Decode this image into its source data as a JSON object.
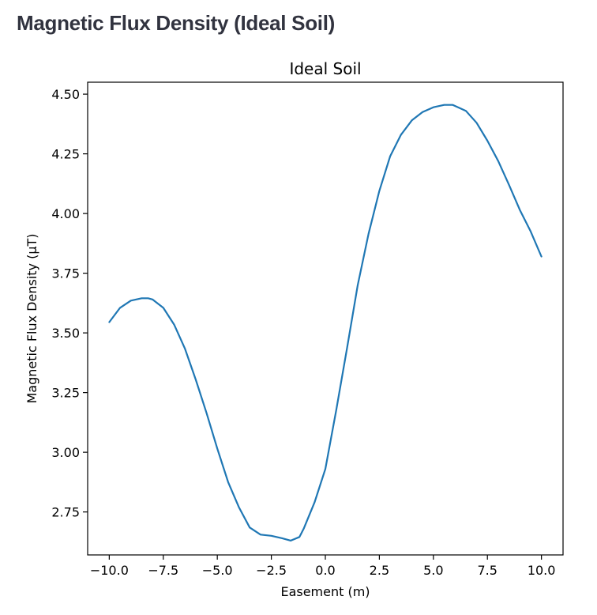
{
  "page": {
    "heading": "Magnetic Flux Density (Ideal Soil)"
  },
  "chart_data": {
    "type": "line",
    "title": "Ideal Soil",
    "xlabel": "Easement (m)",
    "ylabel": "Magnetic Flux Density (µT)",
    "xlim": [
      -11.0,
      11.0
    ],
    "ylim": [
      2.57,
      4.55
    ],
    "xticks": [
      -10.0,
      -7.5,
      -5.0,
      -2.5,
      0.0,
      2.5,
      5.0,
      7.5,
      10.0
    ],
    "xtick_labels": [
      "−10.0",
      "−7.5",
      "−5.0",
      "−2.5",
      "0.0",
      "2.5",
      "5.0",
      "7.5",
      "10.0"
    ],
    "yticks": [
      2.75,
      3.0,
      3.25,
      3.5,
      3.75,
      4.0,
      4.25,
      4.5
    ],
    "ytick_labels": [
      "2.75",
      "3.00",
      "3.25",
      "3.50",
      "3.75",
      "4.00",
      "4.25",
      "4.50"
    ],
    "grid": false,
    "legend": "none",
    "line_color": "#1f77b4",
    "series": [
      {
        "x": [
          -10.0,
          -9.5,
          -9.0,
          -8.5,
          -8.2,
          -8.0,
          -7.5,
          -7.0,
          -6.5,
          -6.0,
          -5.5,
          -5.0,
          -4.5,
          -4.0,
          -3.5,
          -3.0,
          -2.5,
          -2.0,
          -1.6,
          -1.2,
          -1.0,
          -0.5,
          0.0,
          0.5,
          1.0,
          1.5,
          2.0,
          2.5,
          3.0,
          3.5,
          4.0,
          4.5,
          5.0,
          5.5,
          5.9,
          6.5,
          7.0,
          7.5,
          8.0,
          8.5,
          9.0,
          9.5,
          10.0
        ],
        "y": [
          3.545,
          3.605,
          3.635,
          3.645,
          3.645,
          3.64,
          3.605,
          3.535,
          3.435,
          3.305,
          3.165,
          3.015,
          2.875,
          2.77,
          2.685,
          2.655,
          2.65,
          2.64,
          2.63,
          2.645,
          2.68,
          2.79,
          2.93,
          3.175,
          3.435,
          3.7,
          3.915,
          4.095,
          4.24,
          4.33,
          4.39,
          4.425,
          4.445,
          4.455,
          4.455,
          4.43,
          4.38,
          4.305,
          4.22,
          4.12,
          4.015,
          3.925,
          3.82
        ]
      }
    ]
  }
}
